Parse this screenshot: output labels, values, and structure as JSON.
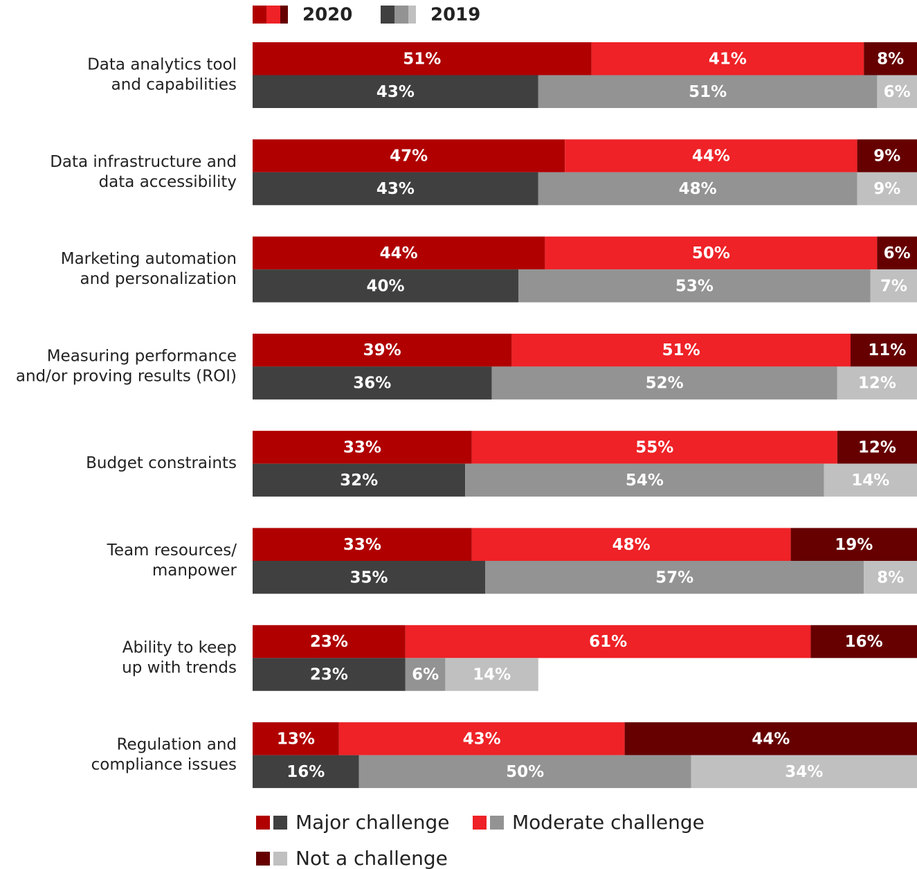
{
  "chart_data": {
    "type": "stacked-bar-horizontal",
    "xlim": [
      0,
      100
    ],
    "categories": [
      [
        "Data analytics tool",
        "and capabilities"
      ],
      [
        "Data infrastructure and",
        "data accessibility"
      ],
      [
        "Marketing automation",
        "and personalization"
      ],
      [
        "Measuring performance",
        "and/or proving results (ROI)"
      ],
      [
        "Budget constraints"
      ],
      [
        "Team resources/",
        "manpower"
      ],
      [
        "Ability to keep",
        "up with trends"
      ],
      [
        "Regulation and",
        "compliance issues"
      ]
    ],
    "groups": [
      {
        "name": "2020",
        "series": [
          {
            "name": "Major challenge",
            "color": "#b00000",
            "values": [
              51,
              47,
              44,
              39,
              33,
              33,
              23,
              13
            ],
            "value_labels": [
              "51%",
              "47%",
              "44%",
              "39%",
              "33%",
              "33%",
              "23%",
              "13%"
            ]
          },
          {
            "name": "Moderate challenge",
            "color": "#ee2227",
            "values": [
              41,
              44,
              50,
              51,
              55,
              48,
              61,
              43
            ],
            "value_labels": [
              "41%",
              "44%",
              "50%",
              "51%",
              "55%",
              "48%",
              "61%",
              "43%"
            ]
          },
          {
            "name": "Not a challenge",
            "color": "#660000",
            "values": [
              8,
              9,
              6,
              11,
              12,
              19,
              16,
              44
            ],
            "value_labels": [
              "8%",
              "9%",
              "6%",
              "11%",
              "12%",
              "19%",
              "16%",
              "44%"
            ]
          }
        ]
      },
      {
        "name": "2019",
        "series": [
          {
            "color": "#404040",
            "values": [
              43,
              43,
              40,
              36,
              32,
              35,
              23,
              16
            ],
            "value_labels": [
              "43%",
              "43%",
              "40%",
              "36%",
              "32%",
              "35%",
              "23%",
              "16%"
            ]
          },
          {
            "color": "#939393",
            "values": [
              51,
              48,
              53,
              52,
              54,
              57,
              6,
              50
            ],
            "value_labels": [
              "51%",
              "48%",
              "53%",
              "52%",
              "54%",
              "57%",
              "6%",
              "50%"
            ]
          },
          {
            "color": "#c0c0c0",
            "values": [
              6,
              9,
              7,
              12,
              14,
              8,
              14,
              34
            ],
            "value_labels": [
              "6%",
              "9%",
              "7%",
              "12%",
              "14%",
              "8%",
              "14%",
              "34%"
            ]
          }
        ]
      }
    ]
  }
}
